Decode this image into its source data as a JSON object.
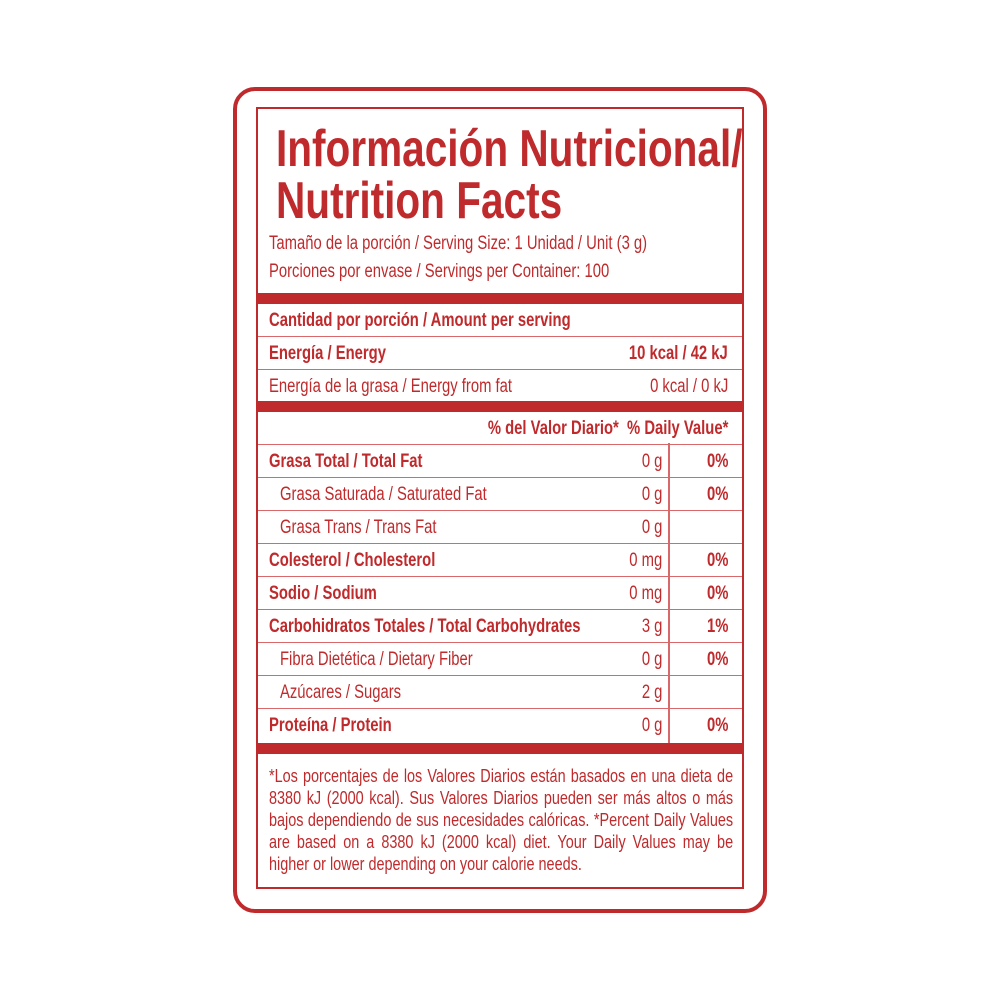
{
  "colors": {
    "brand": "#bf2a2c"
  },
  "title": {
    "line1": "Información Nutricional/",
    "line2": "Nutrition Facts"
  },
  "serving": {
    "size": "Tamaño de la porción / Serving Size: 1 Unidad / Unit (3 g)",
    "per_container": "Porciones por envase / Servings per Container: 100"
  },
  "amount_header": "Cantidad por porción / Amount per serving",
  "energy": {
    "label": "Energía / Energy",
    "value": "10 kcal / 42 kJ"
  },
  "energy_fat": {
    "label": "Energía de la grasa / Energy from fat",
    "value": "0 kcal / 0 kJ"
  },
  "dv_header": "% del Valor Diario*  % Daily Value*",
  "nutrients": [
    {
      "label": "Grasa Total / Total Fat",
      "amount": "0 g",
      "dv": "0%",
      "bold": true
    },
    {
      "label": "Grasa Saturada / Saturated Fat",
      "amount": "0 g",
      "dv": "0%",
      "bold": false
    },
    {
      "label": "Grasa Trans / Trans Fat",
      "amount": "0 g",
      "dv": "",
      "bold": false
    },
    {
      "label": "Colesterol / Cholesterol",
      "amount": "0 mg",
      "dv": "0%",
      "bold": true
    },
    {
      "label": "Sodio / Sodium",
      "amount": "0 mg",
      "dv": "0%",
      "bold": true
    },
    {
      "label": "Carbohidratos Totales / Total Carbohydrates",
      "amount": "3 g",
      "dv": "1%",
      "bold": true
    },
    {
      "label": "Fibra Dietética / Dietary Fiber",
      "amount": "0 g",
      "dv": "0%",
      "bold": false
    },
    {
      "label": "Azúcares / Sugars",
      "amount": "2 g",
      "dv": "",
      "bold": false
    },
    {
      "label": "Proteína / Protein",
      "amount": "0 g",
      "dv": "0%",
      "bold": true
    }
  ],
  "footnote": "*Los porcentajes de los Valores Diarios están basados en una dieta de 8380 kJ (2000 kcal). Sus Valores Diarios pueden ser más altos o más bajos dependiendo de sus necesidades calóricas. *Percent Daily Values are based on a 8380 kJ (2000 kcal) diet. Your Daily Values may be higher or lower depending on your calorie needs."
}
